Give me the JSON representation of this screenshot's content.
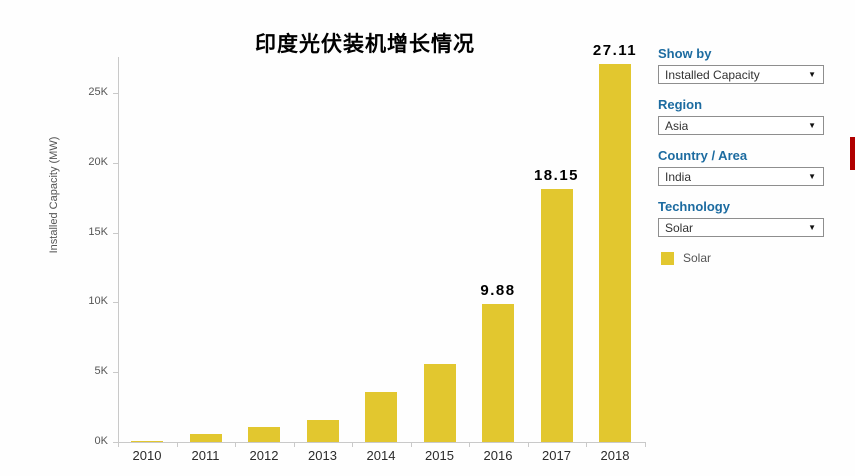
{
  "chart_data": {
    "type": "bar",
    "title": "印度光伏装机增长情况",
    "ylabel": "Installed Capacity (MW)",
    "categories": [
      "2010",
      "2011",
      "2012",
      "2013",
      "2014",
      "2015",
      "2016",
      "2017",
      "2018"
    ],
    "values_mw": [
      65,
      600,
      1100,
      1600,
      3600,
      5600,
      9880,
      18150,
      27110
    ],
    "bar_labels": [
      "",
      "",
      "",
      "",
      "",
      "",
      "9.88",
      "18.15",
      "27.11"
    ],
    "y_ticks": [
      "0K",
      "5K",
      "10K",
      "15K",
      "20K",
      "25K"
    ],
    "y_tick_step_mw": 5000,
    "ylim": [
      0,
      27500
    ],
    "bar_color": "#e2c72f",
    "grid": false,
    "legend_position": "right"
  },
  "filters": {
    "label_color": "#1c6ba0",
    "groups": [
      {
        "label": "Show by",
        "value": "Installed Capacity"
      },
      {
        "label": "Region",
        "value": "Asia"
      },
      {
        "label": "Country / Area",
        "value": "India"
      },
      {
        "label": "Technology",
        "value": "Solar"
      }
    ]
  },
  "legend": {
    "label": "Solar",
    "swatch_color": "#e2c72f"
  },
  "scrollbar": {
    "color": "#b00000"
  }
}
